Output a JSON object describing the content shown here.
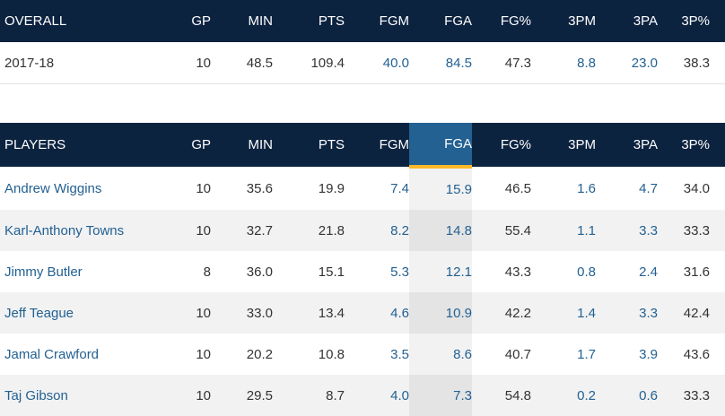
{
  "overall": {
    "headers": [
      "OVERALL",
      "GP",
      "MIN",
      "PTS",
      "FGM",
      "FGA",
      "FG%",
      "3PM",
      "3PA",
      "3P%"
    ],
    "row": [
      "2017-18",
      "10",
      "48.5",
      "109.4",
      "40.0",
      "84.5",
      "47.3",
      "8.8",
      "23.0",
      "38.3"
    ]
  },
  "players": {
    "headers": [
      "PLAYERS",
      "GP",
      "MIN",
      "PTS",
      "FGM",
      "FGA",
      "FG%",
      "3PM",
      "3PA",
      "3P%"
    ],
    "sorted_column": "FGA",
    "rows": [
      [
        "Andrew Wiggins",
        "10",
        "35.6",
        "19.9",
        "7.4",
        "15.9",
        "46.5",
        "1.6",
        "4.7",
        "34.0"
      ],
      [
        "Karl-Anthony Towns",
        "10",
        "32.7",
        "21.8",
        "8.2",
        "14.8",
        "55.4",
        "1.1",
        "3.3",
        "33.3"
      ],
      [
        "Jimmy Butler",
        "8",
        "36.0",
        "15.1",
        "5.3",
        "12.1",
        "43.3",
        "0.8",
        "2.4",
        "31.6"
      ],
      [
        "Jeff Teague",
        "10",
        "33.0",
        "13.4",
        "4.6",
        "10.9",
        "42.2",
        "1.4",
        "3.3",
        "42.4"
      ],
      [
        "Jamal Crawford",
        "10",
        "20.2",
        "10.8",
        "3.5",
        "8.6",
        "40.7",
        "1.7",
        "3.9",
        "43.6"
      ],
      [
        "Taj Gibson",
        "10",
        "29.5",
        "8.7",
        "4.0",
        "7.3",
        "54.8",
        "0.2",
        "0.6",
        "33.3"
      ]
    ]
  },
  "colors": {
    "header_bg": "#0c2340",
    "sorted_header_bg": "#236192",
    "sorted_underline": "#fdb927",
    "link": "#236192",
    "alt_row": "#f2f2f2"
  }
}
